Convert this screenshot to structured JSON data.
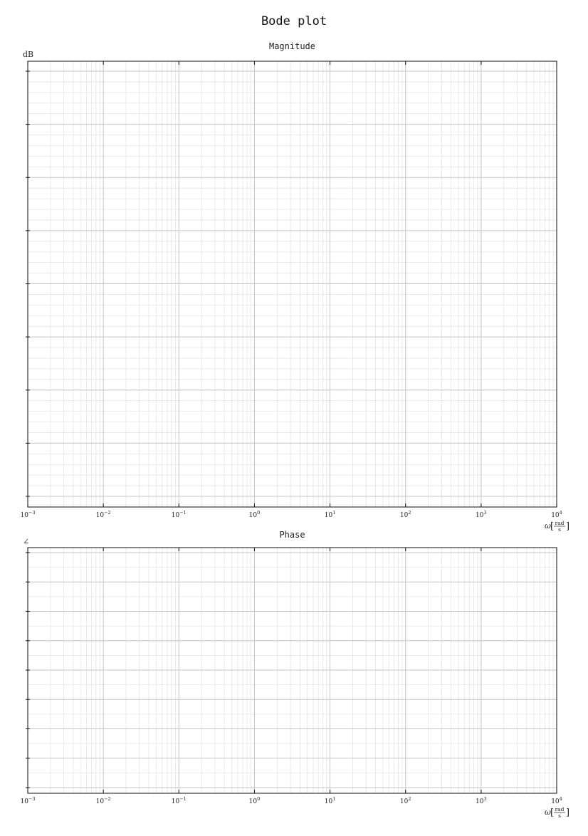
{
  "page": {
    "title": "Bode plot"
  },
  "chart_data": [
    {
      "type": "line",
      "title": "Magnitude",
      "ylabel": "dB",
      "xlabel": "ω[rad/s]",
      "xlabel_symbol": "ω",
      "xlabel_unit_num": "rad",
      "xlabel_unit_den": "s",
      "xscale": "log",
      "xlim": [
        0.001,
        10000
      ],
      "x_ticks": [
        {
          "base": "10",
          "exp": "−3"
        },
        {
          "base": "10",
          "exp": "−2"
        },
        {
          "base": "10",
          "exp": "−1"
        },
        {
          "base": "10",
          "exp": "0"
        },
        {
          "base": "10",
          "exp": "1"
        },
        {
          "base": "10",
          "exp": "2"
        },
        {
          "base": "10",
          "exp": "3"
        },
        {
          "base": "10",
          "exp": "4"
        }
      ],
      "y_major_ticks": 9,
      "y_minor_per_major": 5,
      "grid": true,
      "series": []
    },
    {
      "type": "line",
      "title": "Phase",
      "ylabel": "∠",
      "xlabel": "ω[rad/s]",
      "xlabel_symbol": "ω",
      "xlabel_unit_num": "rad",
      "xlabel_unit_den": "s",
      "xscale": "log",
      "xlim": [
        0.001,
        10000
      ],
      "x_ticks": [
        {
          "base": "10",
          "exp": "−3"
        },
        {
          "base": "10",
          "exp": "−2"
        },
        {
          "base": "10",
          "exp": "−1"
        },
        {
          "base": "10",
          "exp": "0"
        },
        {
          "base": "10",
          "exp": "1"
        },
        {
          "base": "10",
          "exp": "2"
        },
        {
          "base": "10",
          "exp": "3"
        },
        {
          "base": "10",
          "exp": "4"
        }
      ],
      "y_major_ticks": 9,
      "y_minor_per_major": 2,
      "grid": true,
      "series": []
    }
  ]
}
